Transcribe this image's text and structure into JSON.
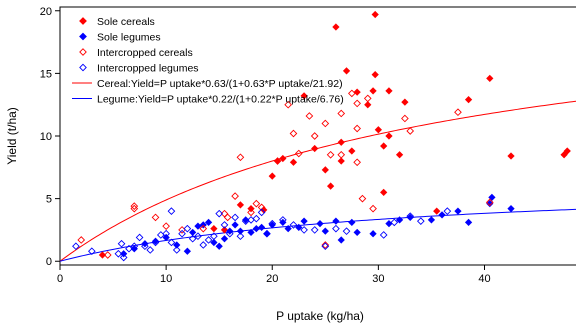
{
  "chart_data": {
    "type": "scatter",
    "title": "",
    "xlabel": "P uptake (kg/ha)",
    "ylabel": "Yield (t/ha)",
    "xlim": [
      0,
      49
    ],
    "ylim": [
      -0.3,
      20.3
    ],
    "x_ticks": [
      "0",
      "10",
      "20",
      "30",
      "40"
    ],
    "y_ticks": [
      "0",
      "5",
      "10",
      "15",
      "20"
    ],
    "grid": false,
    "legend_position": "top-left",
    "series": [
      {
        "name": "Sole cereals",
        "marker": "filled-diamond",
        "color": "#ff0000",
        "points": [
          [
            4,
            0.5
          ],
          [
            14.5,
            2.6
          ],
          [
            15.5,
            2.5
          ],
          [
            17,
            4.5
          ],
          [
            18,
            4.2
          ],
          [
            19.2,
            4.1
          ],
          [
            20,
            6.8
          ],
          [
            20.5,
            8
          ],
          [
            21,
            8.2
          ],
          [
            22,
            7.9
          ],
          [
            23,
            13.2
          ],
          [
            24,
            9
          ],
          [
            25,
            7.3
          ],
          [
            25.5,
            6
          ],
          [
            26,
            18.7
          ],
          [
            26.5,
            9.5
          ],
          [
            26.5,
            8
          ],
          [
            27,
            15.2
          ],
          [
            27.5,
            8.8
          ],
          [
            28,
            13.5
          ],
          [
            29,
            12.5
          ],
          [
            29.5,
            13.6
          ],
          [
            29.7,
            19.7
          ],
          [
            29.7,
            14.9
          ],
          [
            30,
            10.5
          ],
          [
            30.5,
            9.2
          ],
          [
            30.5,
            5.5
          ],
          [
            31,
            13.6
          ],
          [
            31,
            10
          ],
          [
            32,
            8.5
          ],
          [
            32.5,
            12.7
          ],
          [
            35.5,
            4
          ],
          [
            38.5,
            12.9
          ],
          [
            40.5,
            14.6
          ],
          [
            42.5,
            8.4
          ],
          [
            47.5,
            8.5
          ],
          [
            47.8,
            8.8
          ]
        ]
      },
      {
        "name": "Sole legumes",
        "marker": "filled-diamond",
        "color": "#0000ff",
        "points": [
          [
            6,
            0.6
          ],
          [
            7,
            1
          ],
          [
            8,
            1.4
          ],
          [
            9,
            1.6
          ],
          [
            10,
            1.9
          ],
          [
            11,
            1.3
          ],
          [
            12,
            0.8
          ],
          [
            12.5,
            2.3
          ],
          [
            13,
            2.8
          ],
          [
            13.5,
            2.9
          ],
          [
            14,
            3.1
          ],
          [
            14.5,
            1.5
          ],
          [
            15,
            1.2
          ],
          [
            15.5,
            1.8
          ],
          [
            16,
            2.4
          ],
          [
            16.5,
            2.9
          ],
          [
            17,
            2.4
          ],
          [
            17.5,
            3.3
          ],
          [
            18,
            2.3
          ],
          [
            18.5,
            2.6
          ],
          [
            19,
            2.7
          ],
          [
            19.5,
            2.2
          ],
          [
            20,
            2.9
          ],
          [
            21,
            3.1
          ],
          [
            21.5,
            2.6
          ],
          [
            22.5,
            2.7
          ],
          [
            23,
            3.2
          ],
          [
            24.5,
            3
          ],
          [
            25,
            2.4
          ],
          [
            26,
            3.2
          ],
          [
            26.5,
            1.7
          ],
          [
            27.5,
            3.1
          ],
          [
            28,
            2.3
          ],
          [
            29.5,
            2.2
          ],
          [
            31,
            3
          ],
          [
            32,
            3.3
          ],
          [
            33,
            3.5
          ],
          [
            35,
            3.3
          ],
          [
            36,
            3.7
          ],
          [
            37.5,
            4
          ],
          [
            38.5,
            3.1
          ],
          [
            40.5,
            4.6
          ],
          [
            40.7,
            5.1
          ],
          [
            42.5,
            4.2
          ]
        ]
      },
      {
        "name": "Intercropped cereals",
        "marker": "open-diamond",
        "color": "#ff0000",
        "points": [
          [
            2,
            1.7
          ],
          [
            4.5,
            0.5
          ],
          [
            7,
            4.2
          ],
          [
            7,
            4.4
          ],
          [
            9,
            3.5
          ],
          [
            10,
            2.8
          ],
          [
            11.5,
            2.5
          ],
          [
            13.5,
            2.6
          ],
          [
            15.5,
            3.8
          ],
          [
            15.8,
            3.5
          ],
          [
            16.5,
            5.2
          ],
          [
            17,
            8.3
          ],
          [
            18,
            3.9
          ],
          [
            18.5,
            4.6
          ],
          [
            19,
            4.3
          ],
          [
            20.5,
            8
          ],
          [
            21.5,
            12.5
          ],
          [
            22,
            10.2
          ],
          [
            22.5,
            8.6
          ],
          [
            23.5,
            11.6
          ],
          [
            24,
            10
          ],
          [
            25,
            11
          ],
          [
            25,
            1.3
          ],
          [
            25.5,
            8.5
          ],
          [
            26.5,
            8.5
          ],
          [
            26.5,
            11.8
          ],
          [
            27.5,
            13.4
          ],
          [
            28,
            7.9
          ],
          [
            28,
            10.6
          ],
          [
            28,
            12.6
          ],
          [
            28.5,
            5
          ],
          [
            29,
            13
          ],
          [
            29.5,
            4.2
          ],
          [
            32.5,
            11.4
          ],
          [
            33,
            10.4
          ],
          [
            37.5,
            11.9
          ],
          [
            40.5,
            4.7
          ]
        ]
      },
      {
        "name": "Intercropped legumes",
        "marker": "open-diamond",
        "color": "#0000ff",
        "points": [
          [
            1.5,
            1.2
          ],
          [
            3,
            0.8
          ],
          [
            5.5,
            0.6
          ],
          [
            5.8,
            1.4
          ],
          [
            6,
            0.3
          ],
          [
            6.5,
            1
          ],
          [
            7,
            1.2
          ],
          [
            7.5,
            1.9
          ],
          [
            8,
            1.2
          ],
          [
            8.5,
            0.9
          ],
          [
            9,
            1.5
          ],
          [
            9.5,
            2.1
          ],
          [
            10,
            2.2
          ],
          [
            10.5,
            4
          ],
          [
            10.5,
            1.5
          ],
          [
            11,
            0.9
          ],
          [
            11.5,
            2.2
          ],
          [
            12,
            2.6
          ],
          [
            12.5,
            1.8
          ],
          [
            13,
            2
          ],
          [
            13.5,
            1.3
          ],
          [
            14,
            1.7
          ],
          [
            14.5,
            2
          ],
          [
            15,
            3.8
          ],
          [
            15.5,
            2.9
          ],
          [
            16,
            2.2
          ],
          [
            16.5,
            3.5
          ],
          [
            17,
            2
          ],
          [
            17.5,
            3.2
          ],
          [
            18,
            3.3
          ],
          [
            18.5,
            3.4
          ],
          [
            19,
            3.9
          ],
          [
            19.5,
            2.2
          ],
          [
            20,
            3
          ],
          [
            21,
            3.3
          ],
          [
            22,
            2.9
          ],
          [
            23,
            2.5
          ],
          [
            24,
            2.5
          ],
          [
            25,
            1.2
          ],
          [
            26,
            2.6
          ],
          [
            27,
            2.4
          ],
          [
            30.5,
            2.1
          ],
          [
            31.5,
            3.1
          ],
          [
            33,
            3.6
          ],
          [
            34,
            3.2
          ],
          [
            36.5,
            4
          ]
        ]
      }
    ],
    "fit_lines": [
      {
        "label": "Cereal:Yield=P uptake*0.63/(1+0.63*P uptake/21.92)",
        "color": "#ff0000",
        "a": 0.63,
        "ymax": 21.92
      },
      {
        "label": "Legume:Yield=P uptake*0.22/(1+0.22*P uptake/6.76)",
        "color": "#0000ff",
        "a": 0.22,
        "ymax": 6.76
      }
    ]
  }
}
